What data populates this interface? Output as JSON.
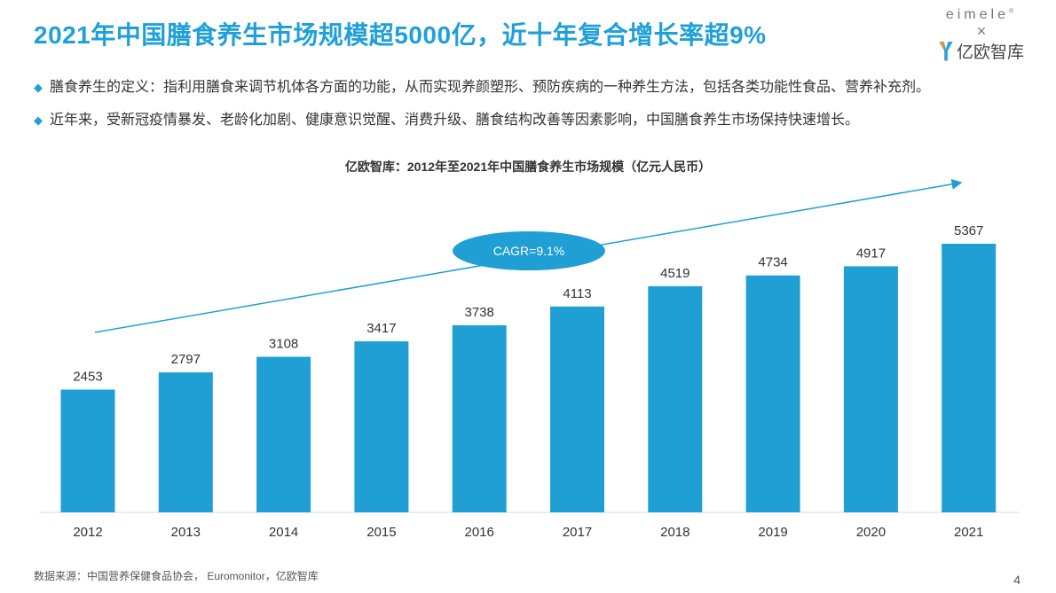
{
  "title": "2021年中国膳食养生市场规模超5000亿，近十年复合增长率超9%",
  "bullets": [
    "膳食养生的定义：指利用膳食来调节机体各方面的功能，从而实现养颜塑形、预防疾病的一种养生方法，包括各类功能性食品、营养补充剂。",
    "近年来，受新冠疫情暴发、老龄化加剧、健康意识觉醒、消费升级、膳食结构改善等因素影响，中国膳食养生市场保持快速增长。"
  ],
  "logo": {
    "brand1": "eimele",
    "registered": "®",
    "cross": "×",
    "brand2": "亿欧智库"
  },
  "source": "数据来源：中国营养保健食品协会， Euromonitor，亿欧智库",
  "page_number": "4",
  "colors": {
    "accent": "#1fa0d8",
    "bar": "#1f9fd4",
    "text": "#333333"
  },
  "chart_data": {
    "type": "bar",
    "title": "亿欧智库：2012年至2021年中国膳食养生市场规模（亿元人民币）",
    "categories": [
      "2012",
      "2013",
      "2014",
      "2015",
      "2016",
      "2017",
      "2018",
      "2019",
      "2020",
      "2021"
    ],
    "values": [
      2453,
      2797,
      3108,
      3417,
      3738,
      4113,
      4519,
      4734,
      4917,
      5367
    ],
    "xlabel": "",
    "ylabel": "",
    "ylim": [
      0,
      5367
    ],
    "grid": false,
    "annotation": "CAGR=9.1%"
  }
}
